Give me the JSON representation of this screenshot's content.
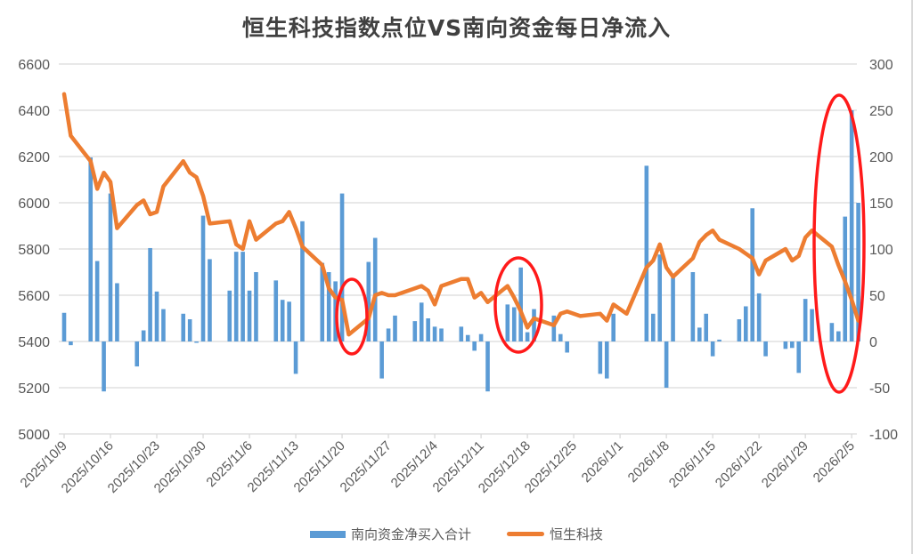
{
  "chart_data": {
    "type": "bar+line",
    "title": "恒生科技指数点位VS南向资金每日净流入",
    "x_tick_labels": [
      "2025/10/9",
      "2025/10/16",
      "2025/10/23",
      "2025/10/30",
      "2025/11/6",
      "2025/11/13",
      "2025/11/20",
      "2025/11/27",
      "2025/12/4",
      "2025/12/11",
      "2025/12/18",
      "2025/12/25",
      "2026/1/1",
      "2026/1/8",
      "2026/1/15",
      "2026/1/22",
      "2026/1/29",
      "2026/2/5"
    ],
    "left_axis": {
      "label": "恒生科技",
      "min": 5000,
      "max": 6600,
      "step": 200,
      "ticks": [
        5000,
        5200,
        5400,
        5600,
        5800,
        6000,
        6200,
        6400,
        6600
      ]
    },
    "right_axis": {
      "label": "南向资金净买入合计",
      "min": -100,
      "max": 300,
      "step": 50,
      "ticks": [
        -100,
        -50,
        0,
        50,
        100,
        150,
        200,
        250,
        300
      ]
    },
    "grid": true,
    "legend_position": "bottom",
    "legend": [
      "南向资金净买入合计",
      "恒生科技"
    ],
    "series": [
      {
        "name": "南向资金净买入合计",
        "type": "bar",
        "axis": "right",
        "color": "#5b9bd5",
        "points": [
          [
            "2025/10/9",
            31
          ],
          [
            "2025/10/10",
            -4
          ],
          [
            "2025/10/13",
            199
          ],
          [
            "2025/10/14",
            87
          ],
          [
            "2025/10/15",
            -54
          ],
          [
            "2025/10/16",
            160
          ],
          [
            "2025/10/17",
            63
          ],
          [
            "2025/10/20",
            -27
          ],
          [
            "2025/10/21",
            12
          ],
          [
            "2025/10/22",
            101
          ],
          [
            "2025/10/23",
            54
          ],
          [
            "2025/10/24",
            35
          ],
          [
            "2025/10/27",
            30
          ],
          [
            "2025/10/28",
            24
          ],
          [
            "2025/10/29",
            0
          ],
          [
            "2025/10/30",
            136
          ],
          [
            "2025/10/31",
            89
          ],
          [
            "2025/11/3",
            55
          ],
          [
            "2025/11/4",
            97
          ],
          [
            "2025/11/5",
            97
          ],
          [
            "2025/11/6",
            55
          ],
          [
            "2025/11/7",
            75
          ],
          [
            "2025/11/10",
            66
          ],
          [
            "2025/11/11",
            45
          ],
          [
            "2025/11/12",
            43
          ],
          [
            "2025/11/13",
            -35
          ],
          [
            "2025/11/14",
            130
          ],
          [
            "2025/11/17",
            85
          ],
          [
            "2025/11/18",
            75
          ],
          [
            "2025/11/19",
            65
          ],
          [
            "2025/11/20",
            160
          ],
          [
            "2025/11/24",
            86
          ],
          [
            "2025/11/25",
            112
          ],
          [
            "2025/11/26",
            -40
          ],
          [
            "2025/11/27",
            14
          ],
          [
            "2025/11/28",
            28
          ],
          [
            "2025/12/1",
            22
          ],
          [
            "2025/12/2",
            42
          ],
          [
            "2025/12/3",
            25
          ],
          [
            "2025/12/4",
            16
          ],
          [
            "2025/12/5",
            14
          ],
          [
            "2025/12/8",
            16
          ],
          [
            "2025/12/9",
            7
          ],
          [
            "2025/12/10",
            -10
          ],
          [
            "2025/12/11",
            8
          ],
          [
            "2025/12/12",
            -54
          ],
          [
            "2025/12/15",
            40
          ],
          [
            "2025/12/16",
            37
          ],
          [
            "2025/12/17",
            80
          ],
          [
            "2025/12/18",
            10
          ],
          [
            "2025/12/19",
            35
          ],
          [
            "2025/12/22",
            28
          ],
          [
            "2025/12/23",
            8
          ],
          [
            "2025/12/24",
            -12
          ],
          [
            "2025/12/29",
            -35
          ],
          [
            "2025/12/30",
            -40
          ],
          [
            "2025/12/31",
            30
          ],
          [
            "2026/1/5",
            190
          ],
          [
            "2026/1/6",
            30
          ],
          [
            "2026/1/7",
            94
          ],
          [
            "2026/1/8",
            -50
          ],
          [
            "2026/1/9",
            69
          ],
          [
            "2026/1/12",
            75
          ],
          [
            "2026/1/13",
            15
          ],
          [
            "2026/1/14",
            30
          ],
          [
            "2026/1/15",
            -16
          ],
          [
            "2026/1/16",
            2
          ],
          [
            "2026/1/19",
            24
          ],
          [
            "2026/1/20",
            38
          ],
          [
            "2026/1/21",
            144
          ],
          [
            "2026/1/22",
            52
          ],
          [
            "2026/1/23",
            -16
          ],
          [
            "2026/1/26",
            -8
          ],
          [
            "2026/1/27",
            -7
          ],
          [
            "2026/1/28",
            -34
          ],
          [
            "2026/1/29",
            46
          ],
          [
            "2026/1/30",
            35
          ],
          [
            "2026/2/2",
            20
          ],
          [
            "2026/2/3",
            11
          ],
          [
            "2026/2/4",
            135
          ],
          [
            "2026/2/5",
            250
          ],
          [
            "2026/2/6",
            150
          ]
        ]
      },
      {
        "name": "恒生科技",
        "type": "line",
        "axis": "left",
        "color": "#ed7d31",
        "points": [
          [
            "2025/10/9",
            6470
          ],
          [
            "2025/10/10",
            6290
          ],
          [
            "2025/10/13",
            6180
          ],
          [
            "2025/10/14",
            6060
          ],
          [
            "2025/10/15",
            6130
          ],
          [
            "2025/10/16",
            6090
          ],
          [
            "2025/10/17",
            5890
          ],
          [
            "2025/10/20",
            5990
          ],
          [
            "2025/10/21",
            6010
          ],
          [
            "2025/10/22",
            5950
          ],
          [
            "2025/10/23",
            5960
          ],
          [
            "2025/10/24",
            6070
          ],
          [
            "2025/10/27",
            6180
          ],
          [
            "2025/10/28",
            6130
          ],
          [
            "2025/10/29",
            6110
          ],
          [
            "2025/10/30",
            6030
          ],
          [
            "2025/10/31",
            5910
          ],
          [
            "2025/11/3",
            5920
          ],
          [
            "2025/11/4",
            5820
          ],
          [
            "2025/11/5",
            5800
          ],
          [
            "2025/11/6",
            5920
          ],
          [
            "2025/11/7",
            5840
          ],
          [
            "2025/11/10",
            5910
          ],
          [
            "2025/11/11",
            5920
          ],
          [
            "2025/11/12",
            5960
          ],
          [
            "2025/11/13",
            5890
          ],
          [
            "2025/11/14",
            5810
          ],
          [
            "2025/11/17",
            5730
          ],
          [
            "2025/11/18",
            5630
          ],
          [
            "2025/11/19",
            5590
          ],
          [
            "2025/11/20",
            5580
          ],
          [
            "2025/11/21",
            5430
          ],
          [
            "2025/11/24",
            5500
          ],
          [
            "2025/11/25",
            5600
          ],
          [
            "2025/11/26",
            5610
          ],
          [
            "2025/11/27",
            5600
          ],
          [
            "2025/11/28",
            5600
          ],
          [
            "2025/12/1",
            5630
          ],
          [
            "2025/12/2",
            5640
          ],
          [
            "2025/12/3",
            5620
          ],
          [
            "2025/12/4",
            5560
          ],
          [
            "2025/12/5",
            5640
          ],
          [
            "2025/12/8",
            5670
          ],
          [
            "2025/12/9",
            5670
          ],
          [
            "2025/12/10",
            5590
          ],
          [
            "2025/12/11",
            5610
          ],
          [
            "2025/12/12",
            5570
          ],
          [
            "2025/12/15",
            5640
          ],
          [
            "2025/12/16",
            5590
          ],
          [
            "2025/12/17",
            5530
          ],
          [
            "2025/12/18",
            5460
          ],
          [
            "2025/12/19",
            5500
          ],
          [
            "2025/12/22",
            5470
          ],
          [
            "2025/12/23",
            5520
          ],
          [
            "2025/12/24",
            5530
          ],
          [
            "2025/12/26",
            5510
          ],
          [
            "2025/12/29",
            5520
          ],
          [
            "2025/12/30",
            5490
          ],
          [
            "2025/12/31",
            5560
          ],
          [
            "2026/1/2",
            5520
          ],
          [
            "2026/1/5",
            5720
          ],
          [
            "2026/1/6",
            5750
          ],
          [
            "2026/1/7",
            5820
          ],
          [
            "2026/1/8",
            5720
          ],
          [
            "2026/1/9",
            5680
          ],
          [
            "2026/1/12",
            5760
          ],
          [
            "2026/1/13",
            5830
          ],
          [
            "2026/1/14",
            5860
          ],
          [
            "2026/1/15",
            5880
          ],
          [
            "2026/1/16",
            5840
          ],
          [
            "2026/1/19",
            5800
          ],
          [
            "2026/1/20",
            5780
          ],
          [
            "2026/1/21",
            5760
          ],
          [
            "2026/1/22",
            5690
          ],
          [
            "2026/1/23",
            5750
          ],
          [
            "2026/1/26",
            5800
          ],
          [
            "2026/1/27",
            5750
          ],
          [
            "2026/1/28",
            5770
          ],
          [
            "2026/1/29",
            5850
          ],
          [
            "2026/1/30",
            5880
          ],
          [
            "2026/2/2",
            5810
          ],
          [
            "2026/2/3",
            5730
          ],
          [
            "2026/2/4",
            5660
          ],
          [
            "2026/2/5",
            5580
          ],
          [
            "2026/2/6",
            5490
          ]
        ]
      }
    ],
    "annotations": [
      {
        "type": "ellipse",
        "color": "#ff0000",
        "around": "2025/11/21 dip"
      },
      {
        "type": "ellipse",
        "color": "#ff0000",
        "around": "2025/12/17 spike"
      },
      {
        "type": "ellipse",
        "color": "#ff0000",
        "around": "2026/2/3-2026/2/6 surge"
      }
    ]
  },
  "legend": {
    "bar_label": "南向资金净买入合计",
    "line_label": "恒生科技"
  },
  "title": "恒生科技指数点位VS南向资金每日净流入"
}
